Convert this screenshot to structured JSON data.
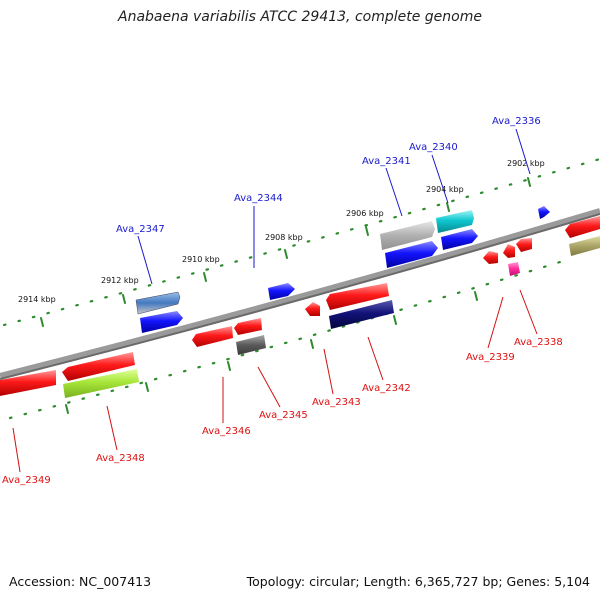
{
  "title": "Anabaena variabilis ATCC 29413, complete genome",
  "accession": "Accession: NC_007413",
  "stats": "Topology: circular; Length: 6,365,727 bp; Genes: 5,104",
  "kbp_labels": [
    "2914 kbp",
    "2912 kbp",
    "2910 kbp",
    "2908 kbp",
    "2906 kbp",
    "2904 kbp",
    "2902 kbp"
  ],
  "genes_top": [
    "Ava_2347",
    "Ava_2344",
    "Ava_2341",
    "Ava_2340",
    "Ava_2336"
  ],
  "genes_bottom": [
    "Ava_2349",
    "Ava_2348",
    "Ava_2346",
    "Ava_2345",
    "Ava_2343",
    "Ava_2342",
    "Ava_2339",
    "Ava_2338"
  ],
  "colors": {
    "backbone": "#808080",
    "tick": "#2e8b2e",
    "top_label": "#1a1acc",
    "bottom_label": "#d11111",
    "red_gene": "#ee1111",
    "blue_gene": "#1111ee"
  }
}
